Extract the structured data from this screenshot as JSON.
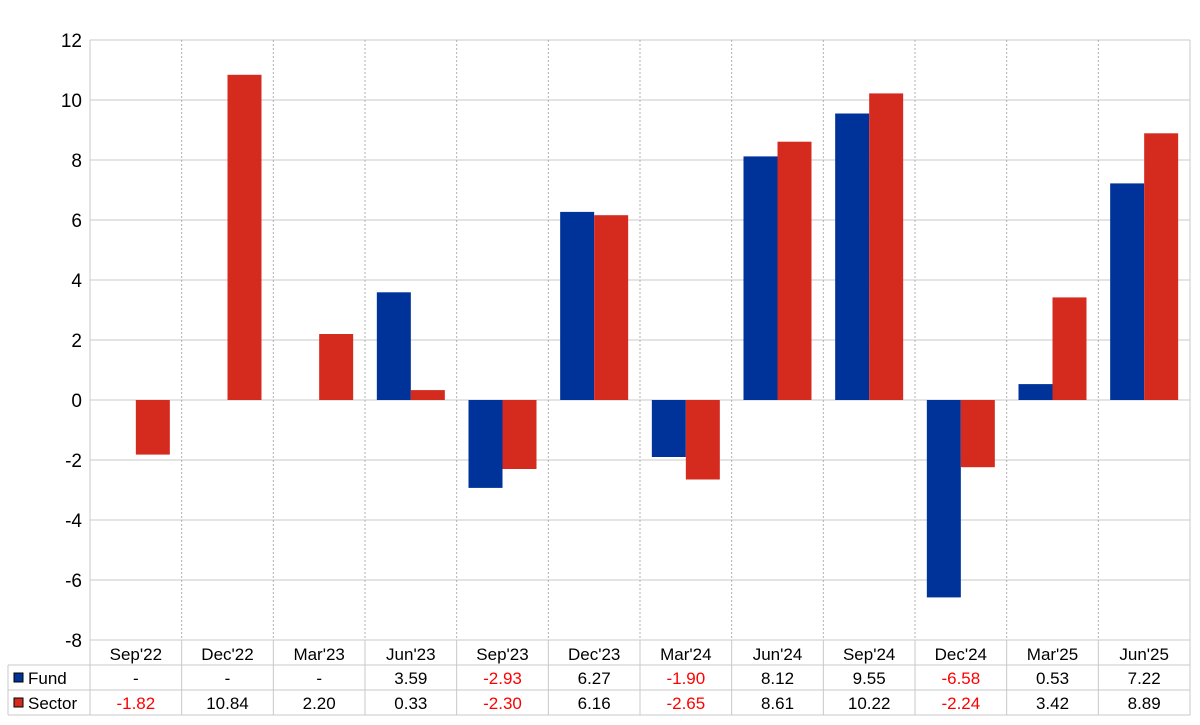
{
  "chart_data": {
    "type": "bar",
    "categories": [
      "Sep'22",
      "Dec'22",
      "Mar'23",
      "Jun'23",
      "Sep'23",
      "Dec'23",
      "Mar'24",
      "Jun'24",
      "Sep'24",
      "Dec'24",
      "Mar'25",
      "Jun'25"
    ],
    "series": [
      {
        "name": "Fund",
        "color": "#003399",
        "values": [
          null,
          null,
          null,
          3.59,
          -2.93,
          6.27,
          -1.9,
          8.12,
          9.55,
          -6.58,
          0.53,
          7.22
        ]
      },
      {
        "name": "Sector",
        "color": "#d52b1e",
        "values": [
          -1.82,
          10.84,
          2.2,
          0.33,
          -2.3,
          6.16,
          -2.65,
          8.61,
          10.22,
          -2.24,
          3.42,
          8.89
        ]
      }
    ],
    "table": {
      "rows": [
        {
          "label": "Fund",
          "cells": [
            "-",
            "-",
            "-",
            "3.59",
            "-2.93",
            "6.27",
            "-1.90",
            "8.12",
            "9.55",
            "-6.58",
            "0.53",
            "7.22"
          ]
        },
        {
          "label": "Sector",
          "cells": [
            "-1.82",
            "10.84",
            "2.20",
            "0.33",
            "-2.30",
            "6.16",
            "-2.65",
            "8.61",
            "10.22",
            "-2.24",
            "3.42",
            "8.89"
          ]
        }
      ]
    },
    "ylim": [
      -8,
      12
    ],
    "yticks": [
      "12",
      "10",
      "8",
      "6",
      "4",
      "2",
      "0",
      "-2",
      "-4",
      "-6",
      "-8"
    ],
    "grid": true,
    "negative_color": "#ff0000",
    "title": "",
    "xlabel": "",
    "ylabel": ""
  }
}
